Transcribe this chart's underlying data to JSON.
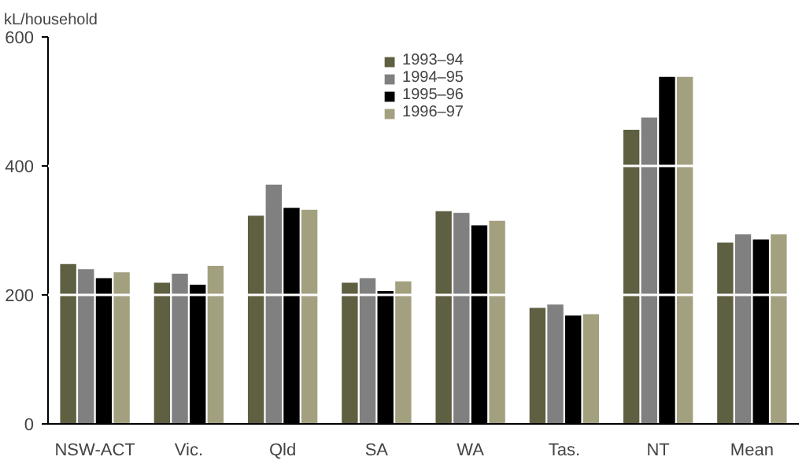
{
  "chart_data": {
    "type": "bar",
    "ylabel": "kL/household",
    "categories": [
      "NSW-ACT",
      "Vic.",
      "Qld",
      "SA",
      "WA",
      "Tas.",
      "NT",
      "Mean"
    ],
    "series": [
      {
        "name": "1993–94",
        "color": "#5f5f41",
        "values": [
          248,
          219,
          323,
          219,
          330,
          180,
          456,
          281
        ]
      },
      {
        "name": "1994–95",
        "color": "#808080",
        "values": [
          240,
          233,
          371,
          226,
          327,
          185,
          475,
          294
        ]
      },
      {
        "name": "1995–96",
        "color": "#000000",
        "values": [
          226,
          216,
          335,
          206,
          308,
          168,
          538,
          286
        ]
      },
      {
        "name": "1996–97",
        "color": "#a2a07f",
        "values": [
          235,
          245,
          332,
          221,
          315,
          170,
          538,
          294
        ]
      }
    ],
    "ylim": [
      0,
      600
    ],
    "yticks": [
      0,
      200,
      400,
      600
    ],
    "grid": "y",
    "legend": "top"
  }
}
